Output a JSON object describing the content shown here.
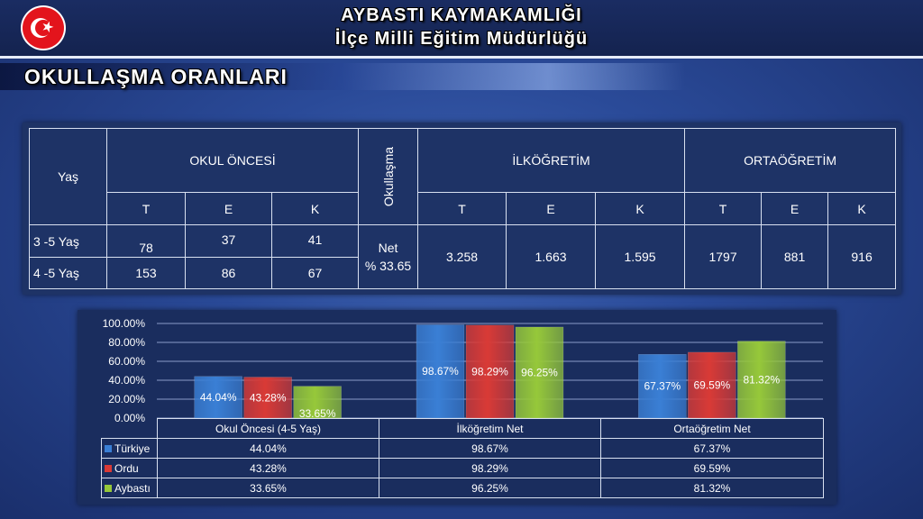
{
  "header": {
    "title_line1": "AYBASTI KAYMAKAMLIĞI",
    "title_line2": "İlçe Milli Eğitim Müdürlüğü"
  },
  "section": {
    "title": "OKULLAŞMA ORANLARI"
  },
  "stats_table": {
    "yas_label": "Yaş",
    "okul_oncesi_label": "OKUL ÖNCESİ",
    "okullasma_label": "Okullaşma",
    "ilkogretim_label": "İLKÖĞRETİM",
    "ortaogretim_label": "ORTAÖĞRETİM",
    "okul_oncesi_subheaders": [
      "T",
      "E",
      "K"
    ],
    "ilkogretim_subheaders": [
      "T",
      "E",
      "K"
    ],
    "ortaogretim_subheaders": [
      "T",
      "E",
      "K"
    ],
    "rows": [
      {
        "age": "3 -5 Yaş",
        "values": [
          "78",
          "37",
          "41"
        ]
      },
      {
        "age": "4 -5 Yaş",
        "values": [
          "153",
          "86",
          "67"
        ]
      }
    ],
    "net_line1": "Net",
    "net_line2": "% 33.65",
    "ilkogretim_values": [
      "3.258",
      "1.663",
      "1.595"
    ],
    "ortaogretim_values": [
      "1797",
      "881",
      "916"
    ]
  },
  "chart_data": {
    "type": "bar",
    "categories": [
      "Okul Öncesi (4-5 Yaş)",
      "İlköğretim Net",
      "Ortaöğretim Net"
    ],
    "series": [
      {
        "name": "Türkiye",
        "values": [
          44.04,
          98.67,
          67.37
        ],
        "labels": [
          "44.04%",
          "98.67%",
          "67.37%"
        ],
        "color": "#3a7fd5"
      },
      {
        "name": "Ordu",
        "values": [
          43.28,
          98.29,
          69.59
        ],
        "labels": [
          "43.28%",
          "98.29%",
          "69.59%"
        ],
        "color": "#d93a36"
      },
      {
        "name": "Aybastı",
        "values": [
          33.65,
          96.25,
          81.32
        ],
        "labels": [
          "33.65%",
          "96.25%",
          "81.32%"
        ],
        "color": "#96c83a"
      }
    ],
    "yticks": [
      "0.00%",
      "20.00%",
      "40.00%",
      "60.00%",
      "80.00%",
      "100.00%"
    ],
    "ylim": [
      0,
      100
    ],
    "grid": true,
    "legend": "data-table"
  }
}
